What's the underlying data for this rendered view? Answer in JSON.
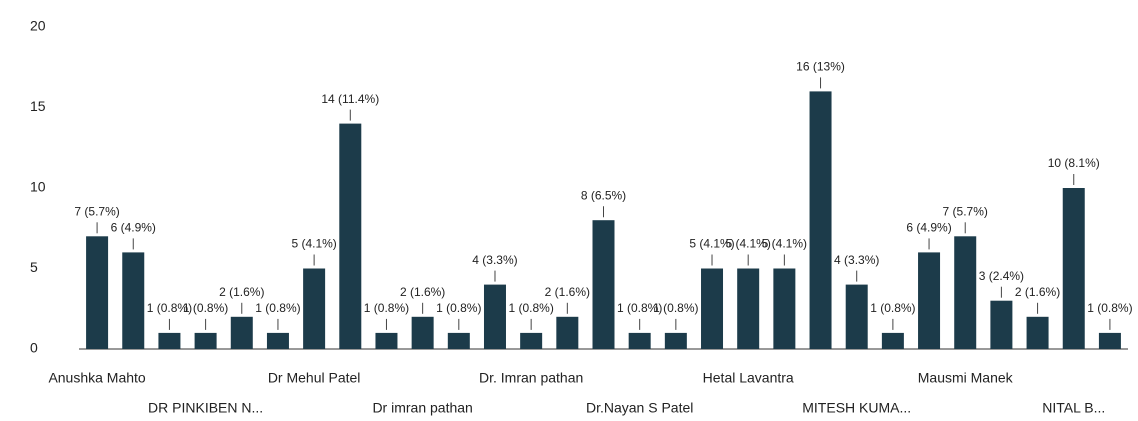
{
  "chart_data": {
    "type": "bar",
    "categories": [
      "Anushka Mahto",
      null,
      null,
      "DR PINKIBEN N...",
      null,
      null,
      "Dr Mehul Patel",
      null,
      null,
      "Dr imran pathan",
      null,
      null,
      "Dr. Imran pathan",
      null,
      null,
      "Dr.Nayan S Patel",
      null,
      null,
      "Hetal Lavantra",
      null,
      null,
      "MITESH KUMA...",
      null,
      null,
      "Mausmi Manek",
      null,
      null,
      "NITAL B...",
      null
    ],
    "values": [
      7,
      6,
      1,
      1,
      2,
      1,
      5,
      14,
      1,
      2,
      1,
      4,
      1,
      2,
      8,
      1,
      1,
      5,
      5,
      5,
      16,
      4,
      1,
      6,
      7,
      3,
      2,
      10,
      1
    ],
    "value_labels": [
      "7 (5.7%)",
      "6 (4.9%)",
      "1 (0.8%)",
      "1 (0.8%)",
      "2 (1.6%)",
      "1 (0.8%)",
      "5 (4.1%)",
      "14 (11.4%)",
      "1 (0.8%)",
      "2 (1.6%)",
      "1 (0.8%)",
      "4 (3.3%)",
      "1 (0.8%)",
      "2 (1.6%)",
      "8 (6.5%)",
      "1 (0.8%)",
      "1 (0.8%)",
      "5 (4.1%)",
      "5 (4.1%)",
      "5 (4.1%)",
      "16 (13%)",
      "4 (3.3%)",
      "1 (0.8%)",
      "6 (4.9%)",
      "7 (5.7%)",
      "3 (2.4%)",
      "2 (1.6%)",
      "10 (8.1%)",
      "1 (0.8%)"
    ],
    "color": "#1c3b4a",
    "ylim": [
      0,
      20
    ],
    "yticks": [
      0,
      5,
      10,
      15,
      20
    ]
  }
}
